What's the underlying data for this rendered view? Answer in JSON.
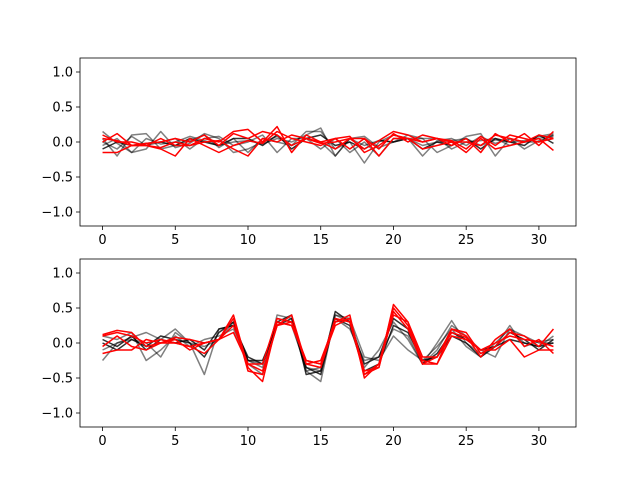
{
  "chart_data": [
    {
      "type": "line",
      "title": "",
      "xlabel": "",
      "ylabel": "",
      "xlim": [
        -1.55,
        32.55
      ],
      "ylim": [
        -1.2,
        1.2
      ],
      "xticks": [
        0,
        5,
        10,
        15,
        20,
        25,
        30
      ],
      "xtick_labels": [
        "0",
        "5",
        "10",
        "15",
        "20",
        "25",
        "30"
      ],
      "yticks": [
        -1.0,
        -0.5,
        0.0,
        0.5,
        1.0
      ],
      "ytick_labels": [
        "−1.0",
        "−0.5",
        "0.0",
        "0.5",
        "1.0"
      ],
      "grid": false,
      "series": [
        {
          "color": "#000000",
          "alpha": 0.5,
          "values": [
            0.15,
            -0.02,
            -0.15,
            0.05,
            -0.03,
            0.0,
            0.08,
            0.02,
            -0.05,
            0.0,
            0.02,
            -0.03,
            0.05,
            0.0,
            0.1,
            0.2,
            -0.2,
            0.05,
            -0.05,
            0.02,
            0.0,
            0.05,
            -0.05,
            0.0,
            0.02,
            0.05,
            -0.05,
            0.03,
            0.0,
            0.02,
            0.05,
            0.1
          ]
        },
        {
          "color": "#000000",
          "alpha": 0.5,
          "values": [
            0.05,
            -0.2,
            0.1,
            0.12,
            -0.1,
            -0.05,
            0.02,
            0.1,
            -0.08,
            0.05,
            -0.15,
            0.05,
            0.0,
            -0.05,
            0.05,
            -0.1,
            0.05,
            -0.15,
            0.0,
            -0.2,
            0.05,
            0.05,
            -0.2,
            0.02,
            0.05,
            -0.05,
            0.08,
            -0.02,
            0.05,
            0.0,
            0.08,
            0.12
          ]
        },
        {
          "color": "#000000",
          "alpha": 0.5,
          "values": [
            -0.05,
            0.05,
            -0.15,
            -0.1,
            0.15,
            -0.08,
            -0.02,
            0.12,
            0.05,
            -0.15,
            -0.1,
            0.0,
            0.08,
            -0.05,
            0.15,
            0.15,
            -0.1,
            0.0,
            -0.3,
            0.0,
            0.1,
            0.05,
            0.05,
            -0.15,
            -0.05,
            0.08,
            0.12,
            -0.2,
            0.05,
            -0.1,
            0.02,
            0.08
          ]
        },
        {
          "color": "#000000",
          "alpha": 0.5,
          "values": [
            0.0,
            -0.1,
            0.08,
            -0.05,
            0.0,
            0.05,
            -0.1,
            0.05,
            0.08,
            -0.05,
            0.0,
            0.1,
            -0.15,
            0.05,
            0.05,
            0.0,
            -0.2,
            0.05,
            0.08,
            -0.08,
            0.0,
            0.1,
            0.05,
            0.05,
            -0.1,
            0.0,
            0.02,
            0.05,
            -0.05,
            0.0,
            0.0,
            0.1
          ]
        },
        {
          "color": "#000000",
          "alpha": 0.8,
          "values": [
            -0.1,
            0.0,
            -0.05,
            -0.02,
            0.0,
            -0.05,
            0.05,
            0.0,
            -0.05,
            0.05,
            0.05,
            -0.05,
            0.1,
            -0.1,
            0.05,
            0.1,
            -0.05,
            0.0,
            -0.1,
            0.02,
            0.0,
            0.05,
            -0.1,
            0.0,
            -0.05,
            0.05,
            -0.1,
            0.05,
            0.0,
            -0.05,
            0.1,
            -0.02
          ]
        },
        {
          "color": "#ff0000",
          "alpha": 1.0,
          "values": [
            0.05,
            0.02,
            -0.05,
            -0.02,
            0.0,
            0.05,
            0.0,
            0.1,
            -0.05,
            0.12,
            0.05,
            0.15,
            0.1,
            -0.05,
            0.05,
            -0.02,
            0.0,
            0.05,
            -0.1,
            0.02,
            0.15,
            0.1,
            0.0,
            0.05,
            0.0,
            0.0,
            -0.05,
            0.1,
            0.05,
            0.0,
            0.1,
            0.05
          ]
        },
        {
          "color": "#ff0000",
          "alpha": 1.0,
          "values": [
            -0.15,
            -0.15,
            -0.05,
            -0.05,
            -0.1,
            -0.2,
            0.05,
            -0.05,
            -0.15,
            -0.05,
            0.02,
            -0.02,
            0.15,
            0.05,
            0.0,
            -0.05,
            0.05,
            -0.1,
            0.05,
            -0.2,
            0.05,
            0.05,
            -0.1,
            -0.05,
            0.0,
            -0.15,
            0.05,
            -0.1,
            -0.05,
            0.0,
            0.05,
            -0.12
          ]
        },
        {
          "color": "#ff0000",
          "alpha": 1.0,
          "values": [
            0.0,
            0.12,
            -0.05,
            -0.05,
            -0.08,
            0.0,
            -0.05,
            0.05,
            0.0,
            0.15,
            0.18,
            0.0,
            0.22,
            -0.15,
            0.1,
            0.0,
            -0.1,
            0.05,
            0.05,
            -0.1,
            0.12,
            0.0,
            0.1,
            0.05,
            -0.05,
            0.05,
            -0.15,
            0.12,
            0.0,
            0.12,
            -0.05,
            0.15
          ]
        },
        {
          "color": "#ff0000",
          "alpha": 1.0,
          "values": [
            0.1,
            0.0,
            0.0,
            -0.05,
            0.05,
            -0.05,
            -0.05,
            0.0,
            0.02,
            -0.1,
            -0.2,
            0.05,
            0.0,
            0.1,
            0.05,
            0.0,
            0.05,
            0.08,
            -0.15,
            -0.05,
            0.1,
            0.05,
            0.0,
            0.05,
            0.02,
            -0.1,
            0.08,
            -0.05,
            0.1,
            0.05,
            0.0,
            0.05
          ]
        }
      ]
    },
    {
      "type": "line",
      "title": "",
      "xlabel": "",
      "ylabel": "",
      "xlim": [
        -1.55,
        32.55
      ],
      "ylim": [
        -1.2,
        1.2
      ],
      "xticks": [
        0,
        5,
        10,
        15,
        20,
        25,
        30
      ],
      "xtick_labels": [
        "0",
        "5",
        "10",
        "15",
        "20",
        "25",
        "30"
      ],
      "yticks": [
        -1.0,
        -0.5,
        0.0,
        0.5,
        1.0
      ],
      "ytick_labels": [
        "−1.0",
        "−0.5",
        "0.0",
        "0.5",
        "1.0"
      ],
      "grid": false,
      "series": [
        {
          "color": "#000000",
          "alpha": 0.5,
          "values": [
            -0.25,
            0.0,
            0.08,
            0.15,
            0.05,
            0.2,
            0.0,
            -0.45,
            0.2,
            0.25,
            -0.3,
            -0.45,
            0.4,
            0.35,
            -0.4,
            -0.55,
            0.4,
            0.3,
            -0.35,
            -0.1,
            0.3,
            0.05,
            -0.3,
            0.0,
            0.32,
            0.0,
            -0.15,
            -0.05,
            0.25,
            -0.05,
            0.02,
            0.05
          ]
        },
        {
          "color": "#000000",
          "alpha": 0.5,
          "values": [
            0.1,
            0.05,
            0.15,
            -0.25,
            -0.1,
            0.1,
            -0.05,
            0.05,
            0.1,
            0.2,
            -0.25,
            -0.3,
            0.3,
            0.25,
            -0.35,
            -0.4,
            0.35,
            0.2,
            -0.25,
            -0.2,
            0.2,
            0.1,
            -0.3,
            -0.1,
            0.25,
            0.1,
            -0.1,
            -0.2,
            0.2,
            0.0,
            -0.05,
            0.1
          ]
        },
        {
          "color": "#000000",
          "alpha": 0.5,
          "values": [
            -0.1,
            0.0,
            0.05,
            0.0,
            -0.2,
            0.15,
            0.0,
            -0.05,
            0.05,
            0.3,
            -0.25,
            -0.35,
            0.35,
            0.3,
            -0.4,
            -0.35,
            0.4,
            0.35,
            -0.2,
            -0.25,
            0.1,
            -0.1,
            -0.25,
            -0.05,
            0.2,
            -0.05,
            -0.2,
            0.0,
            0.2,
            0.1,
            0.0,
            0.0
          ]
        },
        {
          "color": "#000000",
          "alpha": 0.8,
          "values": [
            0.05,
            -0.05,
            0.1,
            -0.1,
            0.05,
            0.0,
            0.05,
            -0.1,
            0.2,
            0.25,
            -0.2,
            -0.3,
            0.3,
            0.4,
            -0.45,
            -0.4,
            0.45,
            0.3,
            -0.3,
            -0.2,
            0.35,
            0.2,
            -0.3,
            -0.15,
            0.15,
            0.05,
            -0.1,
            -0.05,
            0.15,
            0.05,
            -0.1,
            0.05
          ]
        },
        {
          "color": "#000000",
          "alpha": 0.8,
          "values": [
            0.0,
            -0.1,
            0.05,
            -0.05,
            0.1,
            0.05,
            0.0,
            -0.2,
            0.15,
            0.3,
            -0.25,
            -0.25,
            0.25,
            0.35,
            -0.35,
            -0.45,
            0.35,
            0.25,
            -0.4,
            -0.3,
            0.25,
            0.15,
            -0.25,
            -0.2,
            0.1,
            0.0,
            -0.2,
            -0.05,
            0.05,
            0.0,
            -0.05,
            0.0
          ]
        },
        {
          "color": "#ff0000",
          "alpha": 1.0,
          "values": [
            0.1,
            0.15,
            0.1,
            0.0,
            0.05,
            0.0,
            -0.05,
            -0.15,
            0.05,
            0.4,
            -0.35,
            -0.55,
            0.3,
            0.25,
            -0.25,
            -0.3,
            0.35,
            0.3,
            -0.45,
            -0.35,
            0.55,
            0.3,
            -0.3,
            -0.3,
            0.2,
            0.15,
            -0.15,
            -0.05,
            0.15,
            0.1,
            -0.05,
            0.2
          ]
        },
        {
          "color": "#ff0000",
          "alpha": 1.0,
          "values": [
            -0.05,
            0.1,
            -0.05,
            -0.1,
            0.0,
            0.05,
            -0.1,
            0.0,
            0.05,
            0.35,
            -0.4,
            -0.45,
            0.25,
            0.4,
            -0.3,
            -0.35,
            0.3,
            0.4,
            -0.5,
            -0.3,
            0.5,
            0.25,
            -0.25,
            -0.3,
            0.1,
            0.05,
            -0.1,
            -0.1,
            0.05,
            -0.2,
            -0.1,
            -0.1
          ]
        },
        {
          "color": "#ff0000",
          "alpha": 1.0,
          "values": [
            0.12,
            0.18,
            0.15,
            -0.05,
            0.0,
            0.08,
            0.05,
            0.0,
            0.05,
            0.25,
            -0.3,
            -0.4,
            0.25,
            0.3,
            -0.25,
            -0.3,
            0.25,
            0.35,
            -0.45,
            -0.3,
            0.4,
            0.3,
            -0.2,
            -0.2,
            0.15,
            0.08,
            -0.1,
            0.0,
            0.1,
            0.05,
            0.02,
            -0.05
          ]
        },
        {
          "color": "#ff0000",
          "alpha": 1.0,
          "values": [
            -0.15,
            -0.1,
            -0.1,
            0.05,
            0.0,
            0.0,
            -0.05,
            0.0,
            0.05,
            0.15,
            -0.3,
            -0.3,
            0.35,
            0.3,
            -0.3,
            -0.25,
            0.3,
            0.35,
            -0.4,
            -0.35,
            0.45,
            0.2,
            -0.3,
            -0.2,
            0.2,
            0.1,
            -0.2,
            0.05,
            0.2,
            -0.05,
            0.05,
            -0.15
          ]
        }
      ]
    }
  ]
}
